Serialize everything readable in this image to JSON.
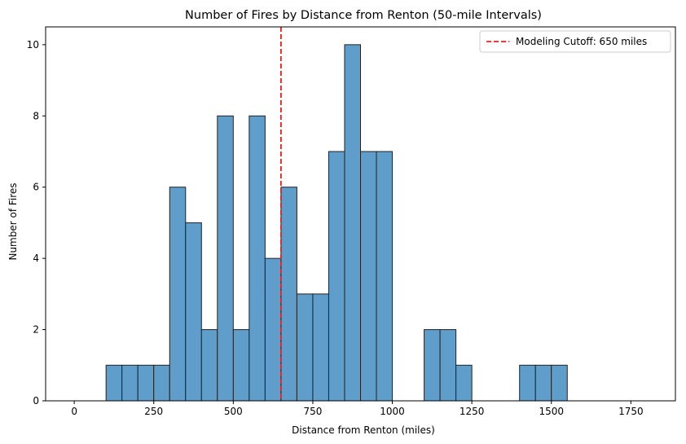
{
  "chart_data": {
    "type": "bar",
    "title": "Number of Fires by Distance from Renton (50-mile Intervals)",
    "xlabel": "Distance from Renton (miles)",
    "ylabel": "Number of Fires",
    "bin_width": 50,
    "bins": [
      {
        "start": 0,
        "end": 50,
        "count": 0
      },
      {
        "start": 50,
        "end": 100,
        "count": 0
      },
      {
        "start": 100,
        "end": 150,
        "count": 1
      },
      {
        "start": 150,
        "end": 200,
        "count": 1
      },
      {
        "start": 200,
        "end": 250,
        "count": 1
      },
      {
        "start": 250,
        "end": 300,
        "count": 1
      },
      {
        "start": 300,
        "end": 350,
        "count": 6
      },
      {
        "start": 350,
        "end": 400,
        "count": 5
      },
      {
        "start": 400,
        "end": 450,
        "count": 2
      },
      {
        "start": 450,
        "end": 500,
        "count": 8
      },
      {
        "start": 500,
        "end": 550,
        "count": 2
      },
      {
        "start": 550,
        "end": 600,
        "count": 8
      },
      {
        "start": 600,
        "end": 650,
        "count": 4
      },
      {
        "start": 650,
        "end": 700,
        "count": 6
      },
      {
        "start": 700,
        "end": 750,
        "count": 3
      },
      {
        "start": 750,
        "end": 800,
        "count": 3
      },
      {
        "start": 800,
        "end": 850,
        "count": 7
      },
      {
        "start": 850,
        "end": 900,
        "count": 10
      },
      {
        "start": 900,
        "end": 950,
        "count": 7
      },
      {
        "start": 950,
        "end": 1000,
        "count": 7
      },
      {
        "start": 1000,
        "end": 1050,
        "count": 0
      },
      {
        "start": 1050,
        "end": 1100,
        "count": 0
      },
      {
        "start": 1100,
        "end": 1150,
        "count": 2
      },
      {
        "start": 1150,
        "end": 1200,
        "count": 2
      },
      {
        "start": 1200,
        "end": 1250,
        "count": 1
      },
      {
        "start": 1250,
        "end": 1300,
        "count": 0
      },
      {
        "start": 1300,
        "end": 1350,
        "count": 0
      },
      {
        "start": 1350,
        "end": 1400,
        "count": 0
      },
      {
        "start": 1400,
        "end": 1450,
        "count": 1
      },
      {
        "start": 1450,
        "end": 1500,
        "count": 1
      },
      {
        "start": 1500,
        "end": 1550,
        "count": 1
      },
      {
        "start": 1550,
        "end": 1600,
        "count": 0
      },
      {
        "start": 1600,
        "end": 1650,
        "count": 0
      },
      {
        "start": 1650,
        "end": 1700,
        "count": 0
      },
      {
        "start": 1700,
        "end": 1750,
        "count": 0
      },
      {
        "start": 1750,
        "end": 1800,
        "count": 0
      }
    ],
    "xlim": [
      -90,
      1890
    ],
    "ylim": [
      0,
      10.5
    ],
    "xticks": [
      0,
      250,
      500,
      750,
      1000,
      1250,
      1500,
      1750
    ],
    "yticks": [
      0,
      2,
      4,
      6,
      8,
      10
    ],
    "cutoff": {
      "value": 650,
      "label": "Modeling Cutoff: 650 miles",
      "color": "#e8201f"
    },
    "bar_color": "#5f9ecb",
    "bar_edge_color": "#222222",
    "legend_position": "top-right",
    "grid": false
  }
}
